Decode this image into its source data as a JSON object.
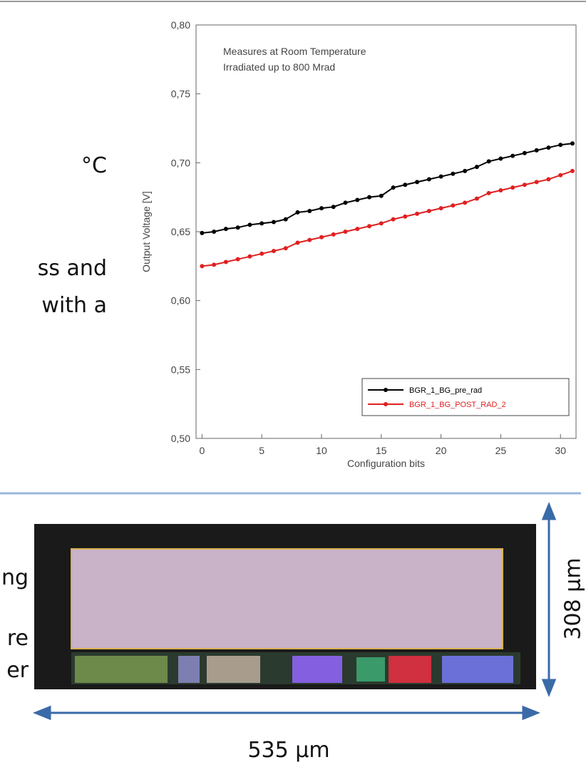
{
  "texts": {
    "fragment_1": "°C",
    "fragment_2": "ss and",
    "fragment_3": "with a",
    "fragment_4": "ng",
    "fragment_5": "re",
    "fragment_6": "er",
    "height_label": "308 µm",
    "width_label": "535 µm"
  },
  "chart_data": {
    "type": "line",
    "annotations": [
      "Measures at Room Temperature",
      "Irradiated up to 800 Mrad"
    ],
    "x_label": "Configuration bits",
    "y_label": "Output Voltage [V]",
    "x": [
      0,
      1,
      2,
      3,
      4,
      5,
      6,
      7,
      8,
      9,
      10,
      11,
      12,
      13,
      14,
      15,
      16,
      17,
      18,
      19,
      20,
      21,
      22,
      23,
      24,
      25,
      26,
      27,
      28,
      29,
      30,
      31
    ],
    "series": [
      {
        "name": "BGR_1_BG_pre_rad",
        "color": "#000000",
        "values": [
          0.649,
          0.65,
          0.652,
          0.653,
          0.655,
          0.656,
          0.657,
          0.659,
          0.664,
          0.665,
          0.667,
          0.668,
          0.671,
          0.673,
          0.675,
          0.676,
          0.682,
          0.684,
          0.686,
          0.688,
          0.69,
          0.692,
          0.694,
          0.697,
          0.701,
          0.703,
          0.705,
          0.707,
          0.709,
          0.711,
          0.713,
          0.714
        ]
      },
      {
        "name": "BGR_1_BG_POST_RAD_2",
        "color": "#e02020",
        "values": [
          0.625,
          0.626,
          0.628,
          0.63,
          0.632,
          0.634,
          0.636,
          0.638,
          0.642,
          0.644,
          0.646,
          0.648,
          0.65,
          0.652,
          0.654,
          0.656,
          0.659,
          0.661,
          0.663,
          0.665,
          0.667,
          0.669,
          0.671,
          0.674,
          0.678,
          0.68,
          0.682,
          0.684,
          0.686,
          0.688,
          0.691,
          0.694
        ]
      }
    ],
    "xlim": [
      -0.5,
      31.3
    ],
    "xticks": [
      0,
      5,
      10,
      15,
      20,
      25,
      30
    ],
    "ylim": [
      0.5,
      0.8
    ],
    "yticks": [
      {
        "value": 0.5,
        "label": "0,50"
      },
      {
        "value": 0.55,
        "label": "0,55"
      },
      {
        "value": 0.6,
        "label": "0,60"
      },
      {
        "value": 0.65,
        "label": "0,65"
      },
      {
        "value": 0.7,
        "label": "0,70"
      },
      {
        "value": 0.75,
        "label": "0,75"
      },
      {
        "value": 0.8,
        "label": "0,80"
      }
    ],
    "legend": "lower right",
    "grid": false
  }
}
